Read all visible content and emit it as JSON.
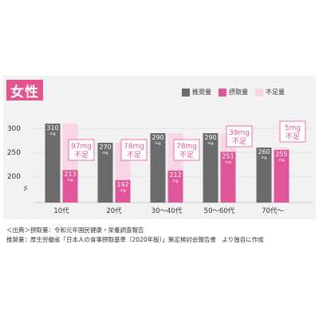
{
  "title": "女性",
  "legend": [
    {
      "label": "推奨量",
      "color": "#6b6b6b"
    },
    {
      "label": "摂取量",
      "color": "#e0569a"
    },
    {
      "label": "不足量",
      "color": "#f9d6e6"
    }
  ],
  "chart_data": {
    "type": "bar",
    "title": "女性",
    "categories": [
      "10代",
      "20代",
      "30〜40代",
      "50〜60代",
      "70代〜"
    ],
    "series": [
      {
        "name": "推奨量",
        "values": [
          310,
          270,
          290,
          290,
          260
        ]
      },
      {
        "name": "摂取量",
        "values": [
          213,
          192,
          212,
          251,
          255
        ]
      },
      {
        "name": "不足量",
        "values": [
          97,
          78,
          78,
          39,
          5
        ]
      }
    ],
    "value_labels": {
      "recommended": [
        "310",
        "270",
        "290",
        "290",
        "260"
      ],
      "intake": [
        "213",
        "192",
        "212",
        "251",
        "255"
      ],
      "unit": "mg"
    },
    "shortfall_labels": [
      {
        "amount": "97mg",
        "text": "不足"
      },
      {
        "amount": "78mg",
        "text": "不足"
      },
      {
        "amount": "78mg",
        "text": "不足"
      },
      {
        "amount": "39mg",
        "text": "不足"
      },
      {
        "amount": "5mg",
        "text": "不足"
      }
    ],
    "yticks": [
      200,
      250,
      300
    ],
    "ylim": [
      150,
      310
    ],
    "axis_break": true,
    "grid": true,
    "legend_position": "top-right",
    "colors": {
      "recommended": "#6b6b6b",
      "intake": "#e0569a",
      "shortfall": "#f9d6e6",
      "shortfall_text": "#e0569a"
    }
  },
  "footer": {
    "line1": "＜出典＞摂取量：令和元年国民健康・栄養調査報告",
    "line2": "推奨量：厚生労働省「日本人の食事摂取基準（2020年版）」策定検討会報告書　より独自に作成"
  }
}
